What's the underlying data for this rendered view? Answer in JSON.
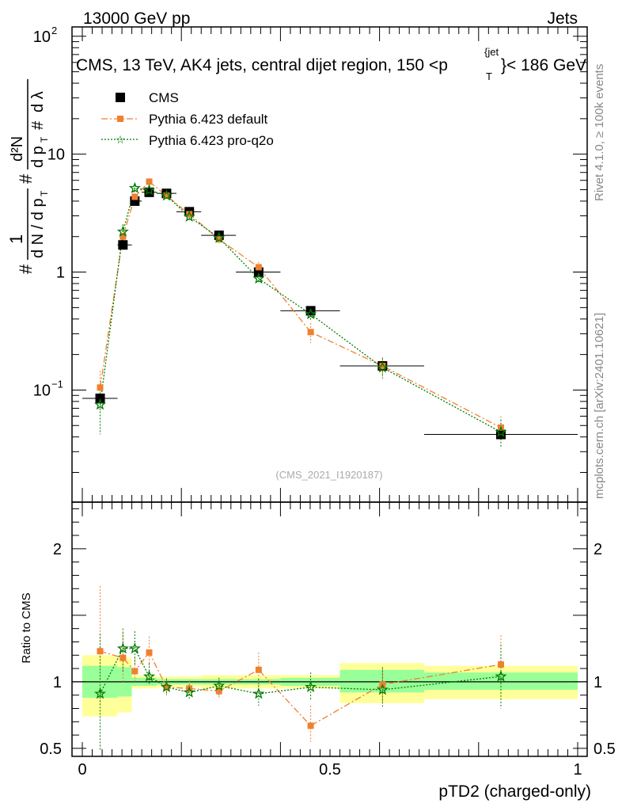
{
  "header": {
    "left": "13000 GeV pp",
    "right": "Jets",
    "title": "CMS, 13 TeV, AK4 jets, central dijet region, 150 <p",
    "title_sup": "{jet",
    "title_sub": "T",
    "title_end": "}< 186 GeV"
  },
  "side_labels": {
    "rivet": "Rivet 4.1.0, ≥ 100k events",
    "mcplots": "mcplots.cern.ch [arXiv:2401.10621]"
  },
  "watermark": "(CMS_2021_I1920187)",
  "ylabel_main": "# 1/dN/dp_T # d²N/dp_T dλ",
  "ylabel_ratio": "Ratio to CMS",
  "xlabel": "pTD2 (charged-only)",
  "legend": [
    {
      "name": "CMS",
      "color": "#000000"
    },
    {
      "name": "Pythia 6.423 default",
      "color": "#f08030"
    },
    {
      "name": "Pythia 6.423 pro-q2o",
      "color": "#007a00"
    }
  ],
  "colors": {
    "band_inner": "#99ff99",
    "band_outer": "#ffff99",
    "default": "#f08030",
    "proq2o": "#007a00"
  },
  "chart_data": [
    {
      "type": "scatter",
      "name": "main",
      "yscale": "log",
      "xlim": [
        0,
        1
      ],
      "ylim": [
        0.0112,
        120
      ],
      "yticks": [
        {
          "v": 0.1,
          "base": "10",
          "exp": "−1"
        },
        {
          "v": 1,
          "base": "1",
          "exp": ""
        },
        {
          "v": 10,
          "base": "10",
          "exp": ""
        },
        {
          "v": 100,
          "base": "10",
          "exp": "2"
        }
      ],
      "bins": [
        [
          0.0,
          0.071
        ],
        [
          0.071,
          0.1
        ],
        [
          0.1,
          0.12
        ],
        [
          0.12,
          0.15
        ],
        [
          0.15,
          0.19
        ],
        [
          0.19,
          0.24
        ],
        [
          0.24,
          0.31
        ],
        [
          0.31,
          0.4
        ],
        [
          0.4,
          0.52
        ],
        [
          0.52,
          0.69
        ],
        [
          0.69,
          1.0
        ]
      ],
      "series": [
        {
          "name": "CMS",
          "x": [
            0.036,
            0.082,
            0.106,
            0.135,
            0.17,
            0.216,
            0.276,
            0.356,
            0.461,
            0.606,
            0.845
          ],
          "y": [
            0.085,
            1.7,
            4.0,
            4.75,
            4.65,
            3.25,
            2.05,
            1.0,
            0.47,
            0.16,
            0.042
          ],
          "err": [
            0.008,
            0.1,
            0.15,
            0.15,
            0.12,
            0.1,
            0.06,
            0.04,
            0.02,
            0.01,
            0.003
          ]
        },
        {
          "name": "Pythia 6.423 default",
          "x": [
            0.036,
            0.082,
            0.106,
            0.135,
            0.17,
            0.216,
            0.276,
            0.356,
            0.461,
            0.606,
            0.845
          ],
          "y": [
            0.105,
            2.0,
            4.35,
            5.85,
            4.45,
            3.1,
            1.9,
            1.1,
            0.31,
            0.16,
            0.048
          ],
          "err": [
            0.04,
            0.3,
            0.3,
            0.3,
            0.2,
            0.15,
            0.15,
            0.12,
            0.06,
            0.03,
            0.012
          ]
        },
        {
          "name": "Pythia 6.423 pro-q2o",
          "x": [
            0.036,
            0.082,
            0.106,
            0.135,
            0.17,
            0.216,
            0.276,
            0.356,
            0.461,
            0.606,
            0.845
          ],
          "y": [
            0.075,
            2.2,
            5.15,
            4.95,
            4.45,
            2.95,
            1.95,
            0.88,
            0.44,
            0.155,
            0.044
          ],
          "err": [
            0.033,
            0.35,
            0.35,
            0.3,
            0.25,
            0.2,
            0.15,
            0.08,
            0.05,
            0.03,
            0.012
          ]
        }
      ]
    },
    {
      "type": "scatter",
      "name": "ratio",
      "xlim": [
        0,
        1
      ],
      "ylim": [
        0.44,
        2.35
      ],
      "yticks": [
        0.5,
        1,
        2
      ],
      "yticklabels": [
        "0.5",
        "1",
        "2"
      ],
      "xticks": [
        0,
        0.5,
        1
      ],
      "xticklabels": [
        "0",
        "0.5",
        "1"
      ],
      "band_inner": [
        [
          0.88,
          1.12
        ],
        [
          0.89,
          1.11
        ],
        [
          0.97,
          1.03
        ],
        [
          0.97,
          1.03
        ],
        [
          0.98,
          1.02
        ],
        [
          0.98,
          1.02
        ],
        [
          0.98,
          1.02
        ],
        [
          0.98,
          1.02
        ],
        [
          0.97,
          1.03
        ],
        [
          0.92,
          1.09
        ],
        [
          0.94,
          1.07
        ]
      ],
      "band_outer": [
        [
          0.74,
          1.2
        ],
        [
          0.77,
          1.18
        ],
        [
          0.95,
          1.05
        ],
        [
          0.95,
          1.05
        ],
        [
          0.96,
          1.04
        ],
        [
          0.96,
          1.04
        ],
        [
          0.95,
          1.05
        ],
        [
          0.95,
          1.05
        ],
        [
          0.95,
          1.05
        ],
        [
          0.84,
          1.14
        ],
        [
          0.87,
          1.12
        ]
      ],
      "series": [
        {
          "name": "Pythia 6.423 default",
          "x": [
            0.036,
            0.082,
            0.106,
            0.135,
            0.17,
            0.216,
            0.276,
            0.356,
            0.461,
            0.606,
            0.845
          ],
          "y": [
            1.23,
            1.18,
            1.08,
            1.22,
            0.96,
            0.95,
            0.93,
            1.09,
            0.67,
            0.98,
            1.13
          ],
          "lo": [
            0.83,
            1.0,
            1.0,
            1.12,
            0.9,
            0.9,
            0.88,
            0.96,
            0.55,
            0.84,
            0.88
          ],
          "hi": [
            1.72,
            1.37,
            1.18,
            1.34,
            1.03,
            1.01,
            0.99,
            1.22,
            0.82,
            1.1,
            1.35
          ]
        },
        {
          "name": "Pythia 6.423 pro-q2o",
          "x": [
            0.036,
            0.082,
            0.106,
            0.135,
            0.17,
            0.216,
            0.276,
            0.356,
            0.461,
            0.606,
            0.845
          ],
          "y": [
            0.91,
            1.25,
            1.25,
            1.04,
            0.96,
            0.92,
            0.97,
            0.91,
            0.96,
            0.94,
            1.04
          ],
          "lo": [
            0.49,
            1.07,
            1.12,
            0.98,
            0.9,
            0.87,
            0.9,
            0.82,
            0.86,
            0.8,
            0.8
          ],
          "hi": [
            1.36,
            1.4,
            1.38,
            1.14,
            1.02,
            0.98,
            1.03,
            1.02,
            1.07,
            1.11,
            1.28
          ]
        }
      ]
    }
  ]
}
